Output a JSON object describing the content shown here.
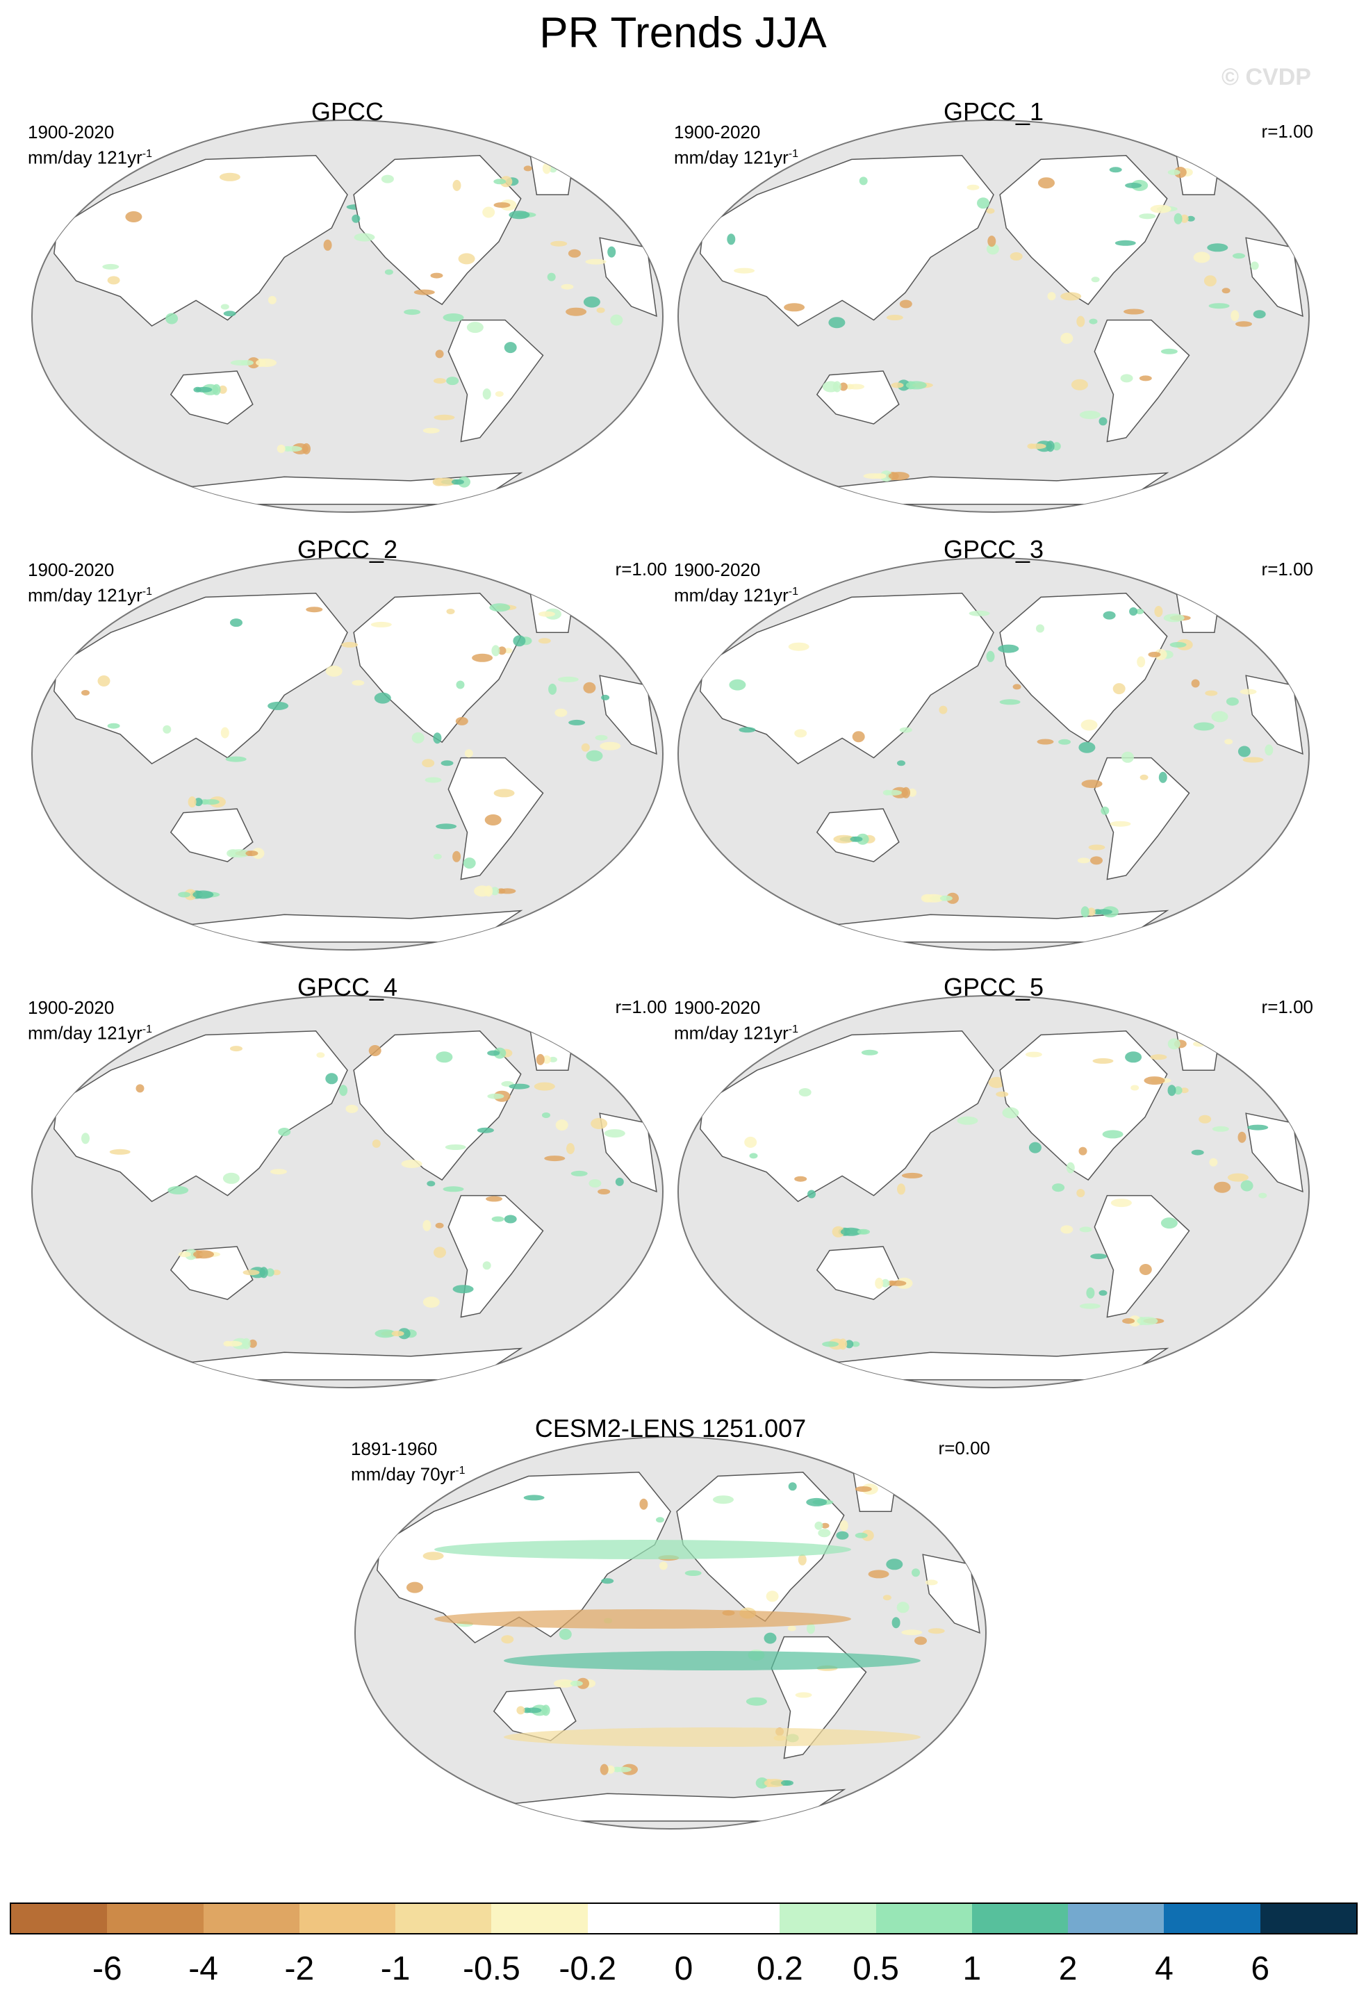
{
  "title": "PR Trends JJA",
  "watermark": "© CVDP",
  "colors": {
    "ocean": "#e6e6e6",
    "land": "#ffffff",
    "coast": "#555555"
  },
  "panels": [
    {
      "title": "GPCC",
      "period": "1900-2020",
      "units": "mm/day 121yr",
      "units_exp": "-1",
      "r": ""
    },
    {
      "title": "GPCC_1",
      "period": "1900-2020",
      "units": "mm/day 121yr",
      "units_exp": "-1",
      "r": "r=1.00"
    },
    {
      "title": "GPCC_2",
      "period": "1900-2020",
      "units": "mm/day 121yr",
      "units_exp": "-1",
      "r": "r=1.00"
    },
    {
      "title": "GPCC_3",
      "period": "1900-2020",
      "units": "mm/day 121yr",
      "units_exp": "-1",
      "r": "r=1.00"
    },
    {
      "title": "GPCC_4",
      "period": "1900-2020",
      "units": "mm/day 121yr",
      "units_exp": "-1",
      "r": "r=1.00"
    },
    {
      "title": "GPCC_5",
      "period": "1900-2020",
      "units": "mm/day 121yr",
      "units_exp": "-1",
      "r": "r=1.00"
    },
    {
      "title": "CESM2-LENS 1251.007",
      "period": "1891-1960",
      "units": "mm/day 70yr",
      "units_exp": "-1",
      "r": "r=0.00"
    }
  ],
  "colorbar": {
    "colors": [
      "#b76e35",
      "#cd8a48",
      "#dfa663",
      "#f0c57f",
      "#f4dd9d",
      "#fbf5c2",
      "#ffffff",
      "#ffffff",
      "#c4f4c9",
      "#98e6b6",
      "#57c09c",
      "#74a9cf",
      "#0f6fb2",
      "#08304b"
    ],
    "labels": [
      "-6",
      "-4",
      "-2",
      "-1",
      "-0.5",
      "-0.2",
      "0",
      "0.2",
      "0.5",
      "1",
      "2",
      "4",
      "6"
    ]
  }
}
